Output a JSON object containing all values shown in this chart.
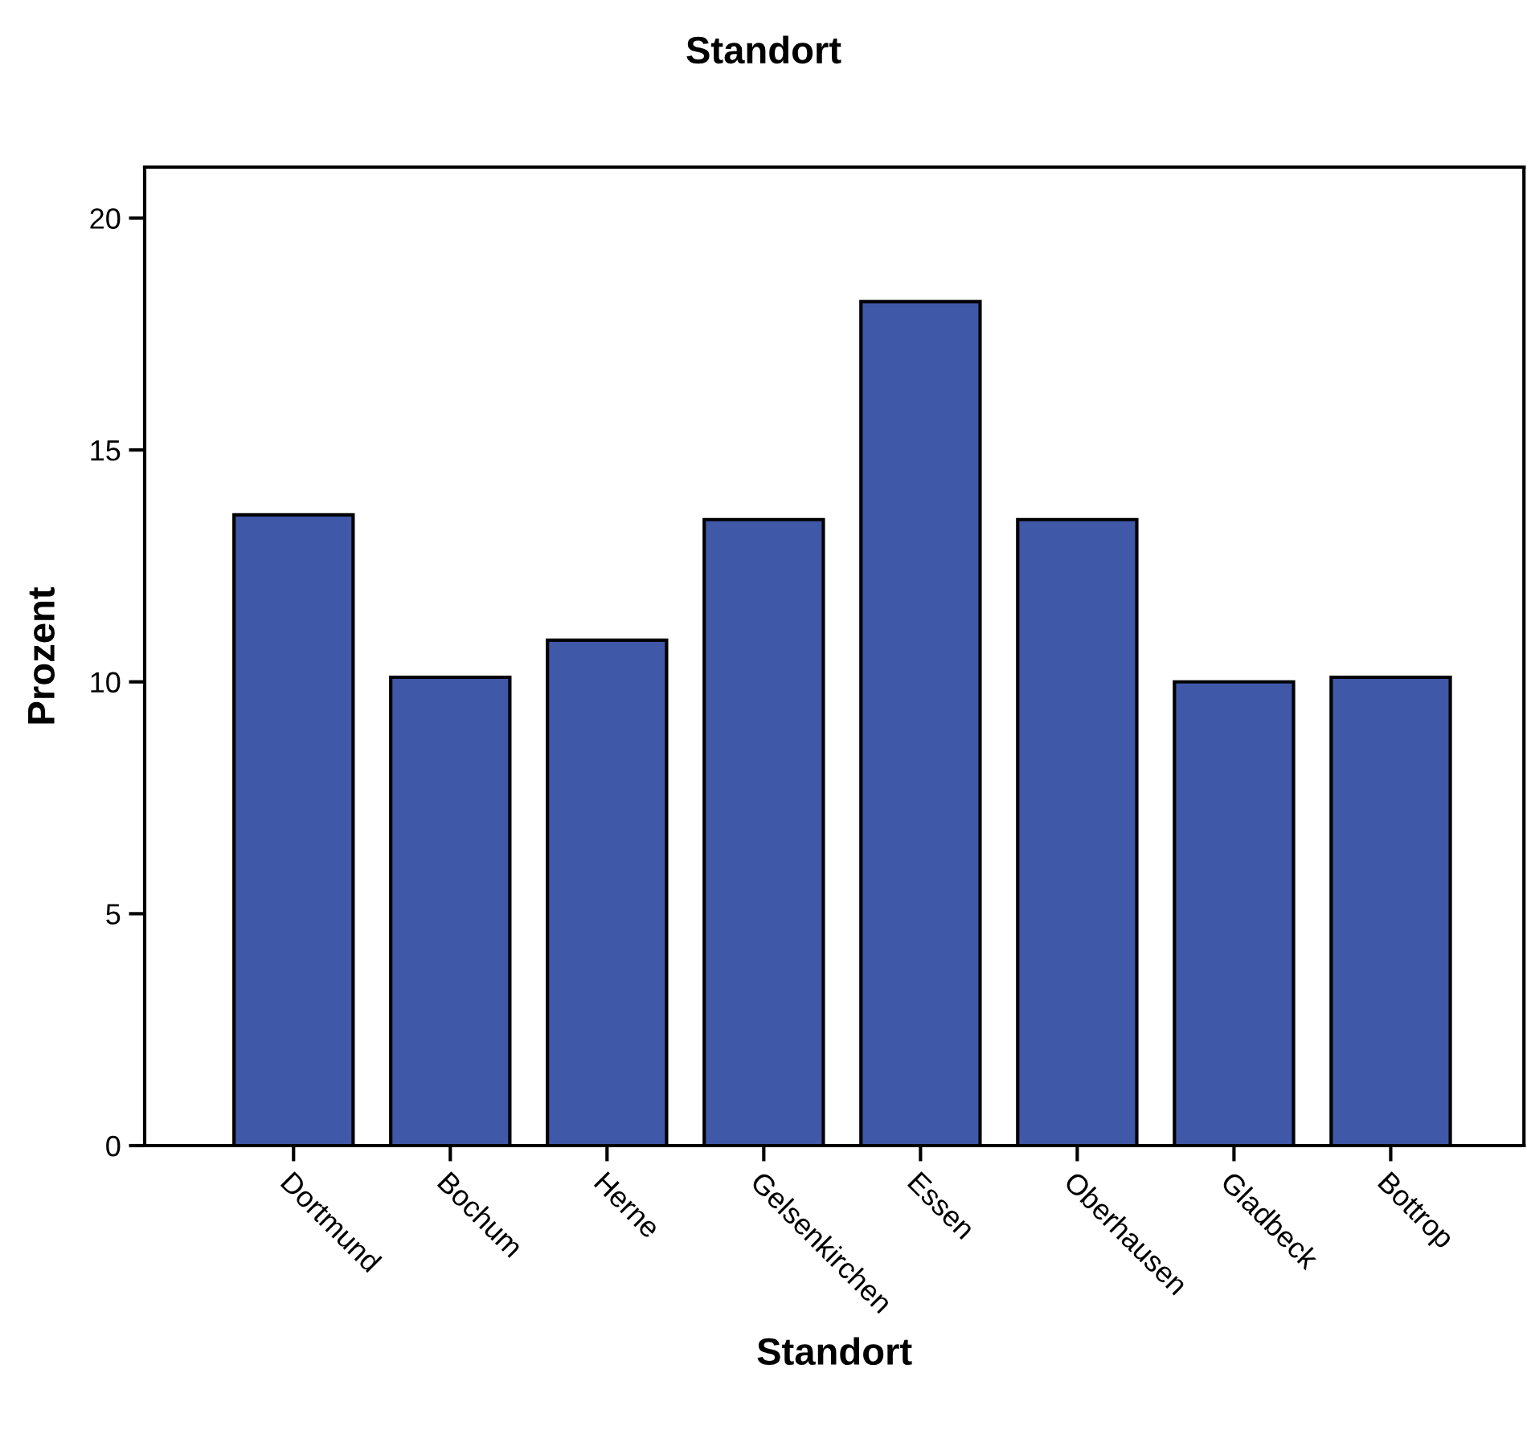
{
  "chart_data": {
    "type": "bar",
    "title": "Standort",
    "xlabel": "Standort",
    "ylabel": "Prozent",
    "categories": [
      "Dortmund",
      "Bochum",
      "Herne",
      "Gelsenkirchen",
      "Essen",
      "Oberhausen",
      "Gladbeck",
      "Bottrop"
    ],
    "values": [
      13.6,
      10.1,
      10.9,
      13.5,
      18.2,
      13.5,
      10.0,
      10.1
    ],
    "color": "#3f58a8",
    "ylim": [
      0,
      21.1
    ],
    "yticks": [
      0,
      5,
      10,
      15,
      20
    ],
    "grid": false
  }
}
